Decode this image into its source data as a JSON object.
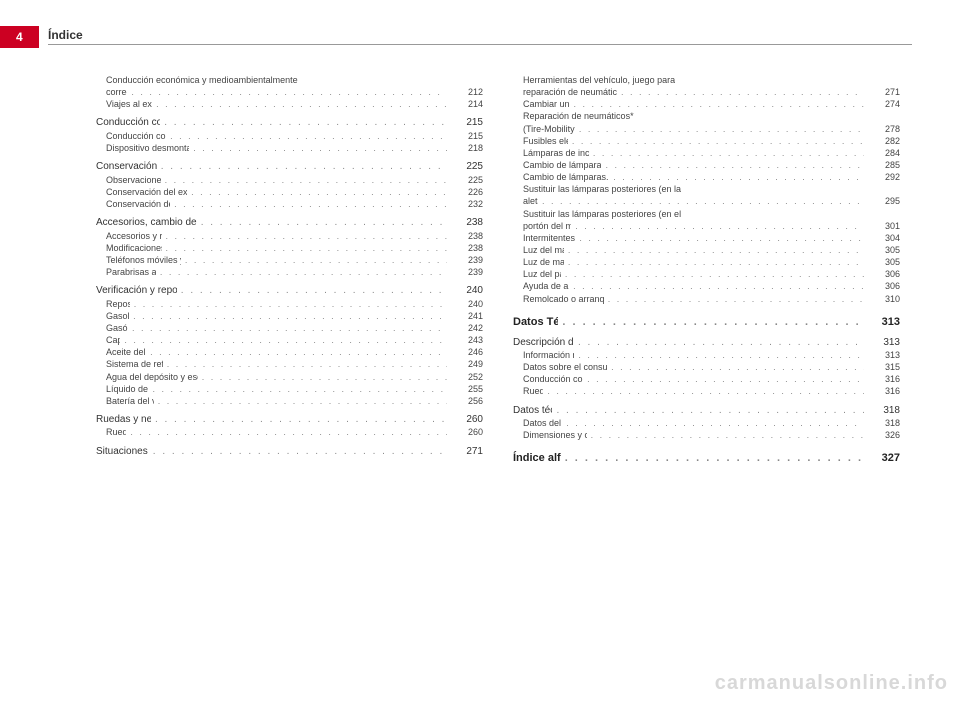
{
  "page_number": "4",
  "header": "Índice",
  "watermark": "carmanualsonline.info",
  "colors": {
    "tab_bg": "#cc0022",
    "tab_fg": "#ffffff",
    "text": "#444444",
    "heading": "#222222",
    "line": "#999999"
  },
  "toc": [
    {
      "label": "Conducción económica y medioambientalmente correcta",
      "page": "212",
      "level": 3
    },
    {
      "label": "Viajes al extranjero",
      "page": "214",
      "level": 3
    },
    {
      "label": "Conducción con remolque",
      "page": "215",
      "level": 2
    },
    {
      "label": "Conducción con remolque",
      "page": "215",
      "level": 3
    },
    {
      "label": "Dispositivo desmontable para remolque",
      "page": "218",
      "level": 3
    },
    {
      "label": "Conservación y limpieza",
      "page": "225",
      "level": 2
    },
    {
      "label": "Observaciones básicas",
      "page": "225",
      "level": 3
    },
    {
      "label": "Conservación del exterior del vehículo",
      "page": "226",
      "level": 3
    },
    {
      "label": "Conservación del habitáculo",
      "page": "232",
      "level": 3
    },
    {
      "label": "Accesorios, cambio de piezas y modificaciones",
      "page": "238",
      "level": 2
    },
    {
      "label": "Accesorios y recambios",
      "page": "238",
      "level": 3
    },
    {
      "label": "Modificaciones técnicas",
      "page": "238",
      "level": 3
    },
    {
      "label": "Teléfonos móviles y radioteléfonos",
      "page": "239",
      "level": 3
    },
    {
      "label": "Parabrisas atérmico*",
      "page": "239",
      "level": 3
    },
    {
      "label": "Verificación y reposición de niveles",
      "page": "240",
      "level": 2
    },
    {
      "label": "Repostar",
      "page": "240",
      "level": 3
    },
    {
      "label": "Gasolina",
      "page": "241",
      "level": 3
    },
    {
      "label": "Gasóleo",
      "page": "242",
      "level": 3
    },
    {
      "label": "Capó",
      "page": "243",
      "level": 3
    },
    {
      "label": "Aceite del motor",
      "page": "246",
      "level": 3
    },
    {
      "label": "Sistema de refrigeración",
      "page": "249",
      "level": 3
    },
    {
      "label": "Agua del depósito y escobillas limpiacristales",
      "page": "252",
      "level": 3
    },
    {
      "label": "Líquido de frenos",
      "page": "255",
      "level": 3
    },
    {
      "label": "Batería del vehículo",
      "page": "256",
      "level": 3
    },
    {
      "label": "Ruedas y neumáticos",
      "page": "260",
      "level": 2
    },
    {
      "label": "Ruedas",
      "page": "260",
      "level": 3
    },
    {
      "label": "Situaciones diversas",
      "page": "271",
      "level": 2
    },
    {
      "label": "Herramientas del vehículo, juego para reparación de neumáticos y rueda de repuesto",
      "page": "271",
      "level": 3
    },
    {
      "label": "Cambiar una rueda",
      "page": "274",
      "level": 3
    },
    {
      "label": "Reparación de neumáticos* (Tire-Mobility-System)",
      "page": "278",
      "level": 3
    },
    {
      "label": "Fusibles eléctricos",
      "page": "282",
      "level": 3
    },
    {
      "label": "Lámparas de incandescencia",
      "page": "284",
      "level": 3
    },
    {
      "label": "Cambio de lámparas. Faro halógeno",
      "page": "285",
      "level": 3
    },
    {
      "label": "Cambio de lámparas. Faro Bi-Xenón AFS",
      "page": "292",
      "level": 3
    },
    {
      "label": "Sustituir las lámparas posteriores (en la aleta)",
      "page": "295",
      "level": 3
    },
    {
      "label": "Sustituir las lámparas posteriores (en el portón del maletero)",
      "page": "301",
      "level": 3
    },
    {
      "label": "Intermitentes laterales",
      "page": "304",
      "level": 3
    },
    {
      "label": "Luz del maletero",
      "page": "305",
      "level": 3
    },
    {
      "label": "Luz de matrícula",
      "page": "305",
      "level": 3
    },
    {
      "label": "Luz del parasol",
      "page": "306",
      "level": 3
    },
    {
      "label": "Ayuda de arranque",
      "page": "306",
      "level": 3
    },
    {
      "label": "Remolcado o arranque por remolcado",
      "page": "310",
      "level": 3
    },
    {
      "label": "Datos Técnicos",
      "page": "313",
      "level": 1
    },
    {
      "label": "Descripción de los datos",
      "page": "313",
      "level": 2
    },
    {
      "label": "Información relevante",
      "page": "313",
      "level": 3
    },
    {
      "label": "Datos sobre el consumo de combustible",
      "page": "315",
      "level": 3
    },
    {
      "label": "Conducción con remolque",
      "page": "316",
      "level": 3
    },
    {
      "label": "Ruedas",
      "page": "316",
      "level": 3
    },
    {
      "label": "Datos técnicos",
      "page": "318",
      "level": 2
    },
    {
      "label": "Datos del motor",
      "page": "318",
      "level": 3
    },
    {
      "label": "Dimensiones y capacidades",
      "page": "326",
      "level": 3
    },
    {
      "label": "Índice alfabético",
      "page": "327",
      "level": 1
    }
  ]
}
